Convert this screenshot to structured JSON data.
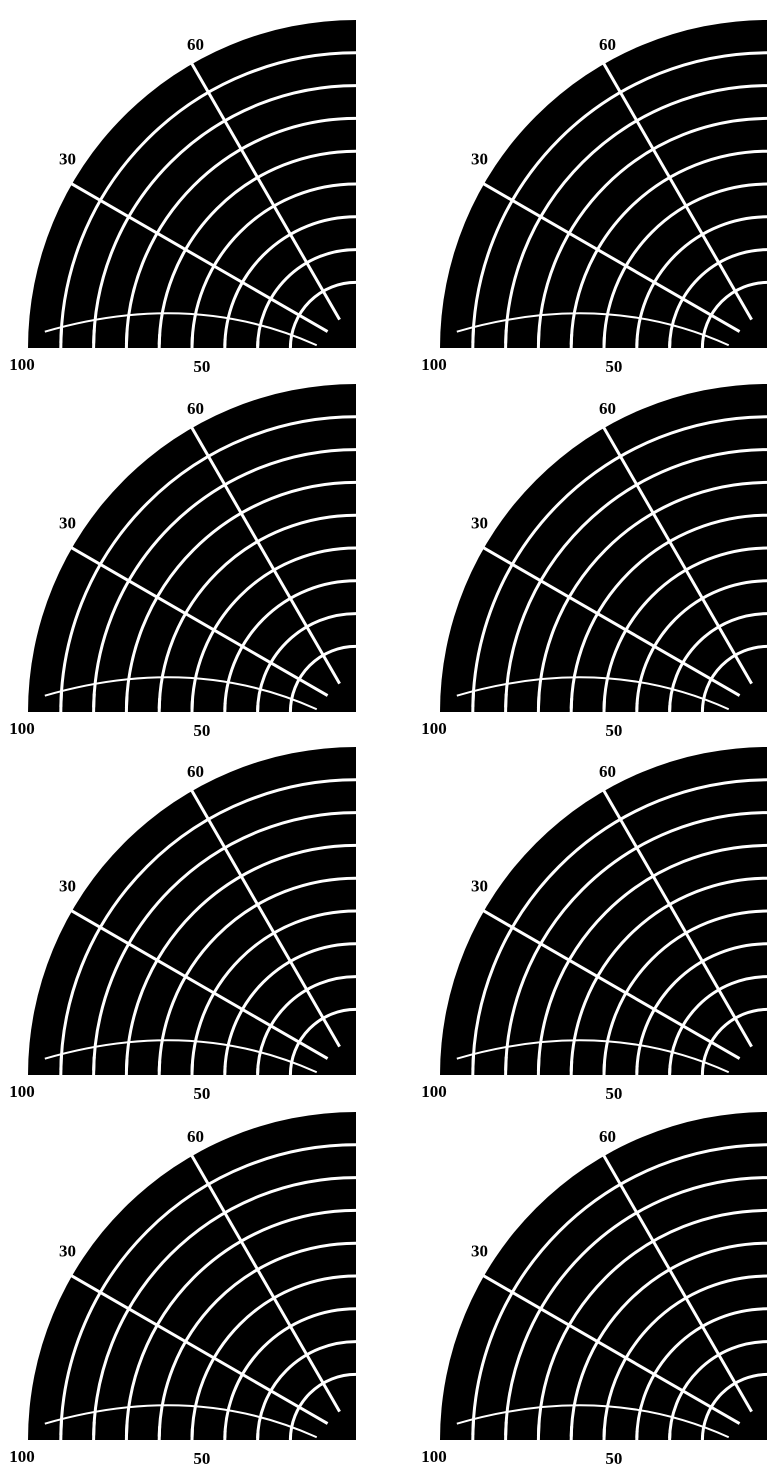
{
  "panels": [
    {
      "angle_labels": [
        "60",
        "30"
      ],
      "range_labels": [
        "100",
        "50"
      ]
    },
    {
      "angle_labels": [
        "60",
        "30"
      ],
      "range_labels": [
        "100",
        "50"
      ]
    },
    {
      "angle_labels": [
        "60",
        "30"
      ],
      "range_labels": [
        "100",
        "50"
      ]
    },
    {
      "angle_labels": [
        "60",
        "30"
      ],
      "range_labels": [
        "100",
        "50"
      ]
    },
    {
      "angle_labels": [
        "60",
        "30"
      ],
      "range_labels": [
        "100",
        "50"
      ]
    },
    {
      "angle_labels": [
        "60",
        "30"
      ],
      "range_labels": [
        "100",
        "50"
      ]
    },
    {
      "angle_labels": [
        "60",
        "30"
      ],
      "range_labels": [
        "100",
        "50"
      ]
    },
    {
      "angle_labels": [
        "60",
        "30"
      ],
      "range_labels": [
        "100",
        "50"
      ]
    }
  ]
}
